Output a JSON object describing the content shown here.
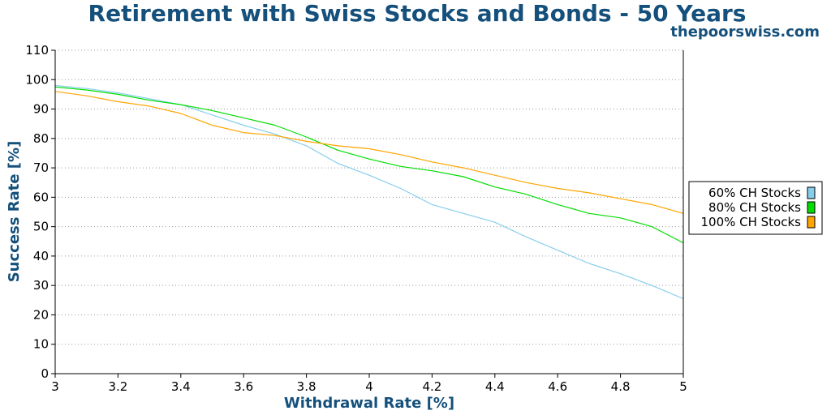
{
  "header": {
    "title": "Retirement with Swiss Stocks and Bonds - 50 Years",
    "subtitle": "thepoorswiss.com"
  },
  "chart_data": {
    "type": "line",
    "title": "Retirement with Swiss Stocks and Bonds - 50 Years",
    "xlabel": "Withdrawal Rate [%]",
    "ylabel": "Success Rate [%]",
    "xlim": [
      3,
      5
    ],
    "ylim": [
      0,
      110
    ],
    "xticks": [
      3,
      3.2,
      3.4,
      3.6,
      3.8,
      4,
      4.2,
      4.4,
      4.6,
      4.8,
      5
    ],
    "xtick_labels": [
      "3",
      "3.2",
      "3.4",
      "3.6",
      "3.8",
      "4",
      "4.2",
      "4.4",
      "4.6",
      "4.8",
      "5"
    ],
    "yticks": [
      0,
      10,
      20,
      30,
      40,
      50,
      60,
      70,
      80,
      90,
      100,
      110
    ],
    "ytick_labels": [
      "0",
      "10",
      "20",
      "30",
      "40",
      "50",
      "60",
      "70",
      "80",
      "90",
      "100",
      "110"
    ],
    "grid": "horizontal dotted",
    "legend_position": "right",
    "x": [
      3.0,
      3.1,
      3.2,
      3.3,
      3.4,
      3.5,
      3.6,
      3.7,
      3.8,
      3.9,
      4.0,
      4.1,
      4.2,
      4.3,
      4.4,
      4.5,
      4.6,
      4.7,
      4.8,
      4.9,
      5.0
    ],
    "series": [
      {
        "name": "60% CH Stocks",
        "color": "#87ceeb",
        "values": [
          98,
          97,
          95.5,
          93.5,
          91.5,
          88,
          84.5,
          81.5,
          77.5,
          71.5,
          67.5,
          63,
          57.5,
          54.5,
          51.5,
          46.5,
          42,
          37.5,
          34,
          30,
          25.5
        ]
      },
      {
        "name": "80% CH Stocks",
        "color": "#00dd00",
        "values": [
          97.5,
          96.5,
          95,
          93,
          91.5,
          89.5,
          87,
          84.5,
          80.5,
          76,
          73,
          70.5,
          69,
          67,
          63.5,
          61,
          57.5,
          54.5,
          53,
          50,
          44.5
        ]
      },
      {
        "name": "100% CH Stocks",
        "color": "#ffa500",
        "values": [
          96,
          94.5,
          92.5,
          91,
          88.5,
          84.5,
          82,
          81,
          79,
          77.5,
          76.5,
          74.5,
          72,
          70,
          67.5,
          65,
          63,
          61.5,
          59.5,
          57.5,
          54.5
        ]
      }
    ]
  }
}
